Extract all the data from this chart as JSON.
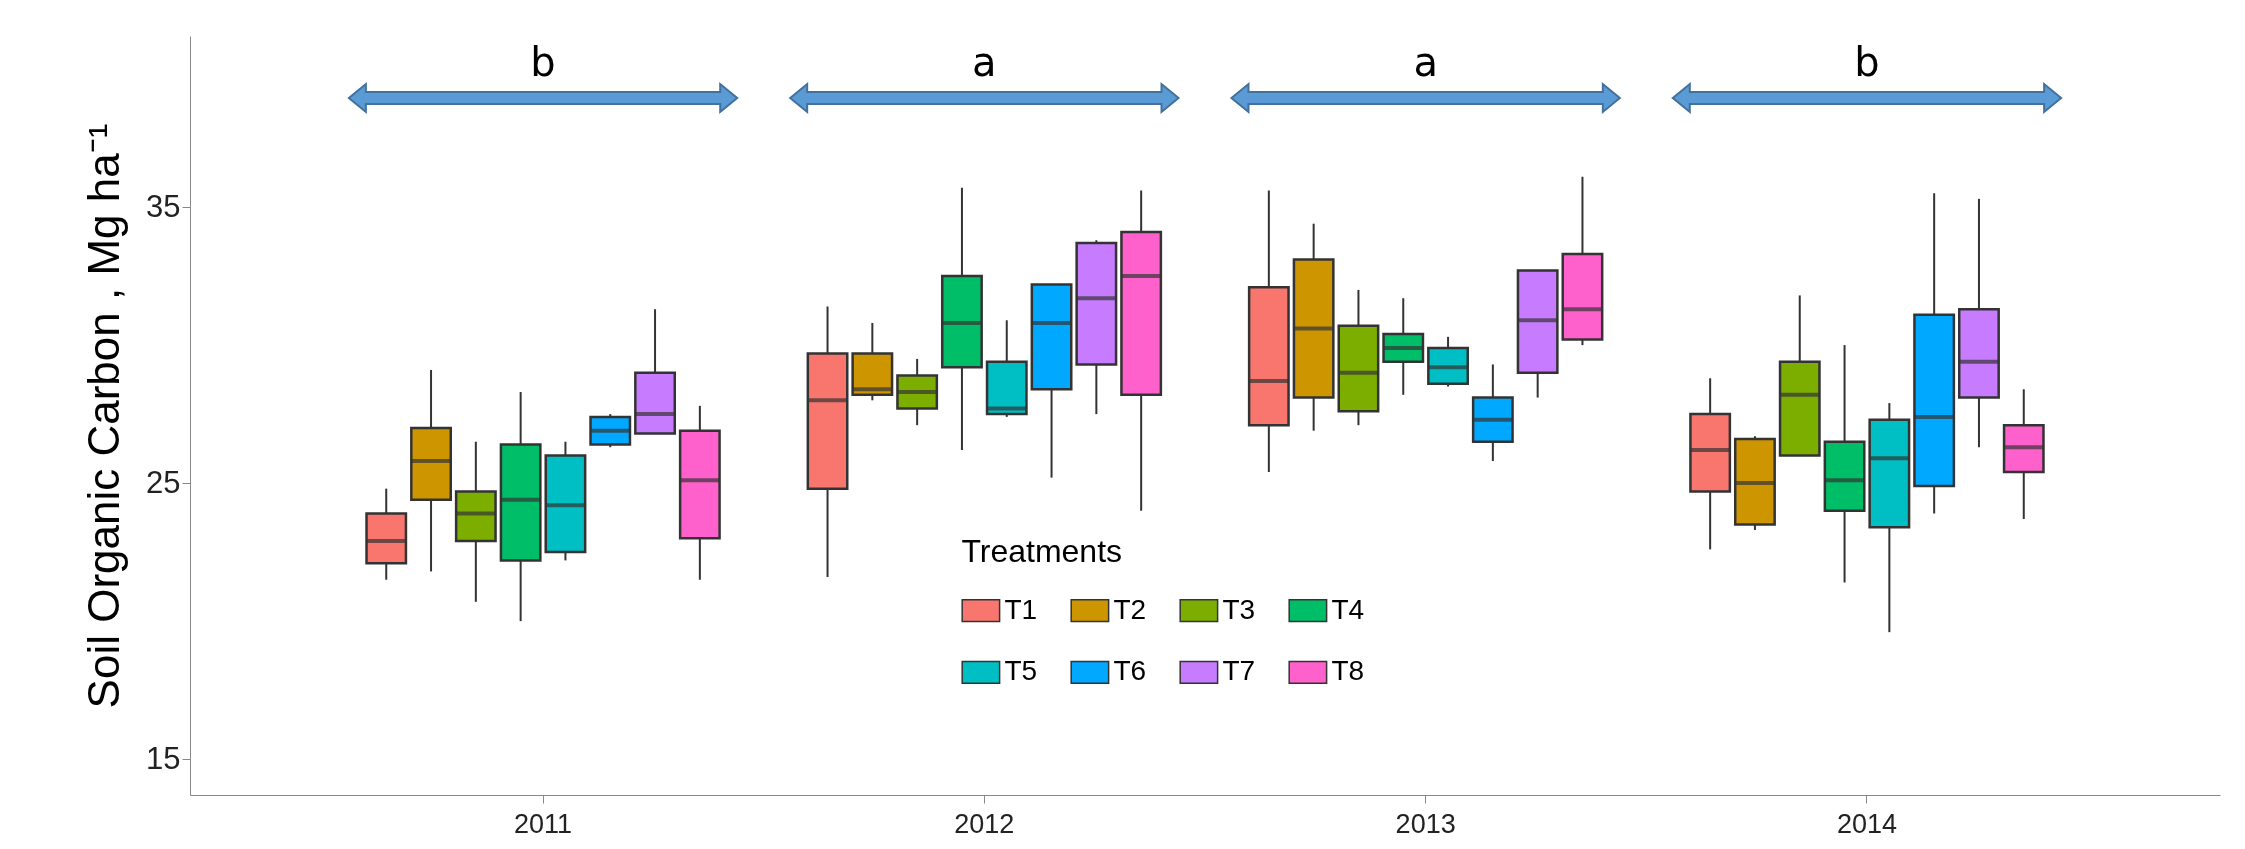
{
  "chart_data": {
    "type": "box",
    "ylabel": "Soil Organic Carbon , Mg ha⁻¹",
    "legend_title": "Treatments",
    "legend": "bottom",
    "grid": false,
    "categories": [
      "2011",
      "2012",
      "2013",
      "2014"
    ],
    "ylim": [
      13.7,
      41.2
    ],
    "yticks": [
      15,
      25,
      35
    ],
    "series": [
      {
        "name": "T1",
        "color": "#f8766d",
        "boxes": [
          {
            "low": 21.5,
            "q1": 22.1,
            "median": 22.9,
            "q3": 23.9,
            "high": 24.8
          },
          {
            "low": 21.6,
            "q1": 24.8,
            "median": 28.0,
            "q3": 29.7,
            "high": 31.4
          },
          {
            "low": 25.4,
            "q1": 27.1,
            "median": 28.7,
            "q3": 32.1,
            "high": 35.6
          },
          {
            "low": 22.6,
            "q1": 24.7,
            "median": 26.2,
            "q3": 27.5,
            "high": 28.8
          }
        ]
      },
      {
        "name": "T2",
        "color": "#cd9600",
        "boxes": [
          {
            "low": 21.8,
            "q1": 24.4,
            "median": 25.8,
            "q3": 27.0,
            "high": 29.1
          },
          {
            "low": 28.0,
            "q1": 28.2,
            "median": 28.4,
            "q3": 29.7,
            "high": 30.8
          },
          {
            "low": 26.9,
            "q1": 28.1,
            "median": 30.6,
            "q3": 33.1,
            "high": 34.4
          },
          {
            "low": 23.3,
            "q1": 23.5,
            "median": 25.0,
            "q3": 26.6,
            "high": 26.7
          }
        ]
      },
      {
        "name": "T3",
        "color": "#7cae00",
        "boxes": [
          {
            "low": 20.7,
            "q1": 22.9,
            "median": 23.9,
            "q3": 24.7,
            "high": 26.5
          },
          {
            "low": 27.1,
            "q1": 27.7,
            "median": 28.3,
            "q3": 28.9,
            "high": 29.5
          },
          {
            "low": 27.1,
            "q1": 27.6,
            "median": 29.0,
            "q3": 30.7,
            "high": 32.0
          },
          {
            "low": 26.0,
            "q1": 26.0,
            "median": 28.2,
            "q3": 29.4,
            "high": 31.8
          }
        ]
      },
      {
        "name": "T4",
        "color": "#00be67",
        "boxes": [
          {
            "low": 20.0,
            "q1": 22.2,
            "median": 24.4,
            "q3": 26.4,
            "high": 28.3
          },
          {
            "low": 26.2,
            "q1": 29.2,
            "median": 30.8,
            "q3": 32.5,
            "high": 35.7
          },
          {
            "low": 28.2,
            "q1": 29.4,
            "median": 29.9,
            "q3": 30.4,
            "high": 31.7
          },
          {
            "low": 21.4,
            "q1": 24.0,
            "median": 25.1,
            "q3": 26.5,
            "high": 30.0
          }
        ]
      },
      {
        "name": "T5",
        "color": "#00bfc4",
        "boxes": [
          {
            "low": 22.2,
            "q1": 22.5,
            "median": 24.2,
            "q3": 26.0,
            "high": 26.5
          },
          {
            "low": 27.4,
            "q1": 27.5,
            "median": 27.7,
            "q3": 29.4,
            "high": 30.9
          },
          {
            "low": 28.5,
            "q1": 28.6,
            "median": 29.2,
            "q3": 29.9,
            "high": 30.3
          },
          {
            "low": 19.6,
            "q1": 23.4,
            "median": 25.9,
            "q3": 27.3,
            "high": 27.9
          }
        ]
      },
      {
        "name": "T6",
        "color": "#00a9ff",
        "boxes": [
          {
            "low": 26.3,
            "q1": 26.4,
            "median": 26.9,
            "q3": 27.4,
            "high": 27.5
          },
          {
            "low": 25.2,
            "q1": 28.4,
            "median": 30.8,
            "q3": 32.2,
            "high": 32.2
          },
          {
            "low": 25.8,
            "q1": 26.5,
            "median": 27.3,
            "q3": 28.1,
            "high": 29.3
          },
          {
            "low": 23.9,
            "q1": 24.9,
            "median": 27.4,
            "q3": 31.1,
            "high": 35.5
          }
        ]
      },
      {
        "name": "T7",
        "color": "#c77cff",
        "boxes": [
          {
            "low": 26.8,
            "q1": 26.8,
            "median": 27.5,
            "q3": 29.0,
            "high": 31.3
          },
          {
            "low": 27.5,
            "q1": 29.3,
            "median": 31.7,
            "q3": 33.7,
            "high": 33.8
          },
          {
            "low": 28.1,
            "q1": 29.0,
            "median": 30.9,
            "q3": 32.7,
            "high": 32.7
          },
          {
            "low": 26.3,
            "q1": 28.1,
            "median": 29.4,
            "q3": 31.3,
            "high": 35.3
          }
        ]
      },
      {
        "name": "T8",
        "color": "#ff61cc",
        "boxes": [
          {
            "low": 21.5,
            "q1": 23.0,
            "median": 25.1,
            "q3": 26.9,
            "high": 27.8
          },
          {
            "low": 24.0,
            "q1": 28.2,
            "median": 32.5,
            "q3": 34.1,
            "high": 35.6
          },
          {
            "low": 30.0,
            "q1": 30.2,
            "median": 31.3,
            "q3": 33.3,
            "high": 36.1
          },
          {
            "low": 23.7,
            "q1": 25.4,
            "median": 26.3,
            "q3": 27.1,
            "high": 28.4
          }
        ]
      }
    ],
    "annotations": [
      "b",
      "a",
      "a",
      "b"
    ]
  }
}
